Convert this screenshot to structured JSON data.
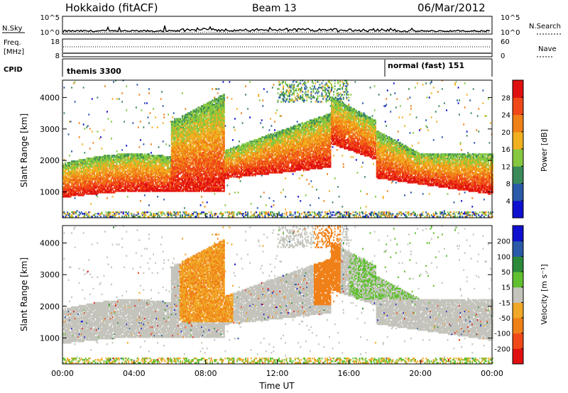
{
  "header": {
    "station": "Hokkaido (fitACF)",
    "beam": "Beam 13",
    "date": "06/Mar/2012"
  },
  "noise_panel": {
    "left_label": "N.Sky",
    "right_label": "N.Search",
    "left_ticks": [
      "10^5",
      "10^0"
    ],
    "right_ticks": [
      "10^5",
      "10^0"
    ]
  },
  "freq_panel": {
    "left_label_1": "Freq.",
    "left_label_2": "[MHz]",
    "right_label": "Nave",
    "left_ticks": [
      "18",
      "8"
    ],
    "right_ticks": [
      "60",
      "0"
    ]
  },
  "cpid_panel": {
    "label": "CPID",
    "segments": [
      {
        "name": "themis 3300",
        "start_hour": 0
      },
      {
        "name": "normal (fast) 151",
        "start_hour": 18
      }
    ]
  },
  "chart_data": [
    {
      "type": "heatmap",
      "quantity": "Power",
      "colorbar_label": "Power [dB]",
      "colorbar_ticks": [
        "4",
        "8",
        "12",
        "16",
        "20",
        "24",
        "28"
      ],
      "colorbar_colors": [
        "#1010d0",
        "#2a5aa8",
        "#3a8a5a",
        "#86c840",
        "#f0b020",
        "#f08018",
        "#f04818",
        "#e01010"
      ],
      "ylabel": "Slant Range [km]",
      "yticks": [
        "1000",
        "2000",
        "3000",
        "4000"
      ],
      "ylim": [
        180,
        4550
      ],
      "xlim": [
        0,
        24
      ]
    },
    {
      "type": "heatmap",
      "quantity": "Velocity",
      "colorbar_label": "Velocity [m s⁻¹]",
      "colorbar_ticks": [
        "-200",
        "-100",
        "-50",
        "-15",
        "15",
        "50",
        "100",
        "200"
      ],
      "colorbar_colors": [
        "#e01010",
        "#f04818",
        "#f08018",
        "#f0a828",
        "#c4c4bc",
        "#60c030",
        "#2a8a3a",
        "#2a5aa8",
        "#1010d0"
      ],
      "ylabel": "Slant Range [km]",
      "yticks": [
        "1000",
        "2000",
        "3000",
        "4000"
      ],
      "ylim": [
        180,
        4550
      ],
      "xlim": [
        0,
        24
      ]
    }
  ],
  "time_axis": {
    "label": "Time UT",
    "ticks": [
      "00:00",
      "04:00",
      "08:00",
      "12:00",
      "16:00",
      "20:00",
      "00:00"
    ]
  }
}
